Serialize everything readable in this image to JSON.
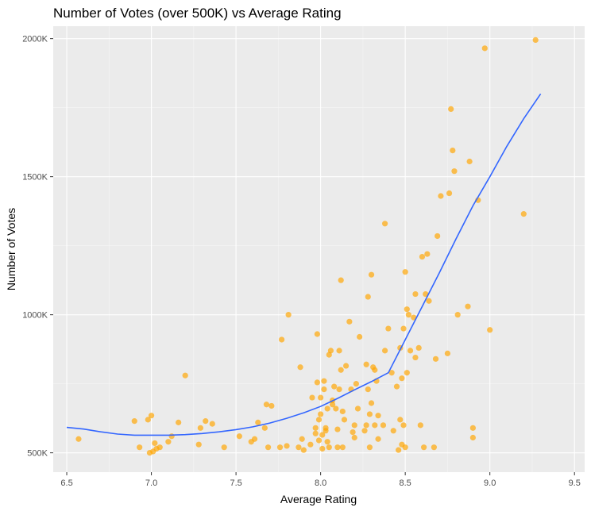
{
  "chart_data": {
    "type": "scatter",
    "title": "Number of Votes (over 500K) vs Average Rating",
    "xlabel": "Average Rating",
    "ylabel": "Number of Votes",
    "xlim": [
      6.42,
      9.56
    ],
    "ylim": [
      430000,
      2045000
    ],
    "x_ticks": [
      6.5,
      7.0,
      7.5,
      8.0,
      8.5,
      9.0,
      9.5
    ],
    "x_tick_labels": [
      "6.5",
      "7.0",
      "7.5",
      "8.0",
      "8.5",
      "9.0",
      "9.5"
    ],
    "y_ticks": [
      500000,
      1000000,
      1500000,
      2000000
    ],
    "y_tick_labels": [
      "500K",
      "1000K",
      "1500K",
      "2000K"
    ],
    "grid": true,
    "legend": "none",
    "colors": {
      "panel_background": "#ebebeb",
      "grid_major": "#ffffff",
      "grid_minor": "#f5f5f5",
      "point": "#ffa500",
      "trend_line": "#3366ff"
    },
    "series": [
      {
        "kind": "points",
        "x": [
          6.57,
          6.9,
          6.93,
          6.98,
          6.99,
          7.0,
          7.01,
          7.02,
          7.03,
          7.05,
          7.1,
          7.12,
          7.16,
          7.2,
          7.28,
          7.29,
          7.32,
          7.36,
          7.43,
          7.52,
          7.59,
          7.61,
          7.63,
          7.67,
          7.68,
          7.69,
          7.71,
          7.76,
          7.77,
          7.8,
          7.81,
          7.87,
          7.88,
          7.89,
          7.9,
          7.94,
          7.95,
          7.97,
          7.97,
          7.98,
          7.98,
          7.99,
          7.99,
          8.0,
          8.0,
          8.01,
          8.01,
          8.02,
          8.02,
          8.03,
          8.03,
          8.04,
          8.04,
          8.05,
          8.05,
          8.06,
          8.07,
          8.07,
          8.08,
          8.09,
          8.1,
          8.1,
          8.11,
          8.11,
          8.12,
          8.12,
          8.13,
          8.13,
          8.14,
          8.15,
          8.17,
          8.18,
          8.19,
          8.2,
          8.2,
          8.21,
          8.22,
          8.23,
          8.26,
          8.27,
          8.27,
          8.28,
          8.28,
          8.29,
          8.29,
          8.3,
          8.3,
          8.31,
          8.32,
          8.32,
          8.33,
          8.34,
          8.34,
          8.37,
          8.38,
          8.38,
          8.4,
          8.42,
          8.43,
          8.45,
          8.46,
          8.47,
          8.47,
          8.48,
          8.48,
          8.49,
          8.49,
          8.5,
          8.5,
          8.51,
          8.51,
          8.52,
          8.53,
          8.55,
          8.56,
          8.56,
          8.58,
          8.59,
          8.6,
          8.61,
          8.62,
          8.63,
          8.64,
          8.67,
          8.68,
          8.69,
          8.71,
          8.75,
          8.76,
          8.77,
          8.78,
          8.79,
          8.81,
          8.87,
          8.88,
          8.9,
          8.9,
          8.93,
          8.97,
          9.0,
          9.2,
          9.27
        ],
        "y": [
          550000,
          615000,
          520000,
          620000,
          500000,
          635000,
          505000,
          535000,
          515000,
          520000,
          540000,
          560000,
          610000,
          780000,
          530000,
          590000,
          615000,
          605000,
          520000,
          560000,
          540000,
          550000,
          610000,
          590000,
          675000,
          520000,
          670000,
          520000,
          910000,
          525000,
          1000000,
          520000,
          810000,
          550000,
          510000,
          530000,
          700000,
          590000,
          570000,
          755000,
          930000,
          545000,
          620000,
          700000,
          640000,
          515000,
          565000,
          730000,
          760000,
          580000,
          590000,
          660000,
          540000,
          520000,
          855000,
          870000,
          675000,
          690000,
          740000,
          660000,
          520000,
          585000,
          870000,
          730000,
          1125000,
          800000,
          650000,
          520000,
          620000,
          815000,
          975000,
          730000,
          575000,
          555000,
          600000,
          750000,
          660000,
          920000,
          580000,
          600000,
          820000,
          730000,
          1065000,
          520000,
          640000,
          680000,
          1145000,
          810000,
          800000,
          600000,
          760000,
          635000,
          550000,
          600000,
          870000,
          1330000,
          950000,
          790000,
          580000,
          740000,
          510000,
          880000,
          620000,
          770000,
          530000,
          950000,
          600000,
          1155000,
          520000,
          1020000,
          790000,
          1000000,
          870000,
          990000,
          845000,
          1075000,
          880000,
          600000,
          1210000,
          520000,
          1075000,
          1220000,
          1050000,
          520000,
          840000,
          1285000,
          1430000,
          860000,
          1440000,
          1745000,
          1595000,
          1520000,
          1000000,
          1030000,
          1555000,
          555000,
          590000,
          1415000,
          1965000,
          945000,
          1365000,
          1995000
        ]
      },
      {
        "kind": "smooth",
        "x": [
          6.5,
          6.6,
          6.7,
          6.8,
          6.9,
          7.0,
          7.1,
          7.2,
          7.3,
          7.4,
          7.5,
          7.6,
          7.7,
          7.8,
          7.9,
          8.0,
          8.1,
          8.2,
          8.3,
          8.4,
          8.5,
          8.6,
          8.7,
          8.8,
          8.9,
          9.0,
          9.1,
          9.2,
          9.3
        ],
        "y": [
          592000,
          586000,
          576000,
          568000,
          564000,
          564000,
          564000,
          566000,
          570000,
          576000,
          584000,
          594000,
          608000,
          625000,
          645000,
          668000,
          697000,
          728000,
          758000,
          790000,
          910000,
          1030000,
          1150000,
          1275000,
          1395000,
          1500000,
          1610000,
          1710000,
          1800000
        ]
      }
    ]
  }
}
